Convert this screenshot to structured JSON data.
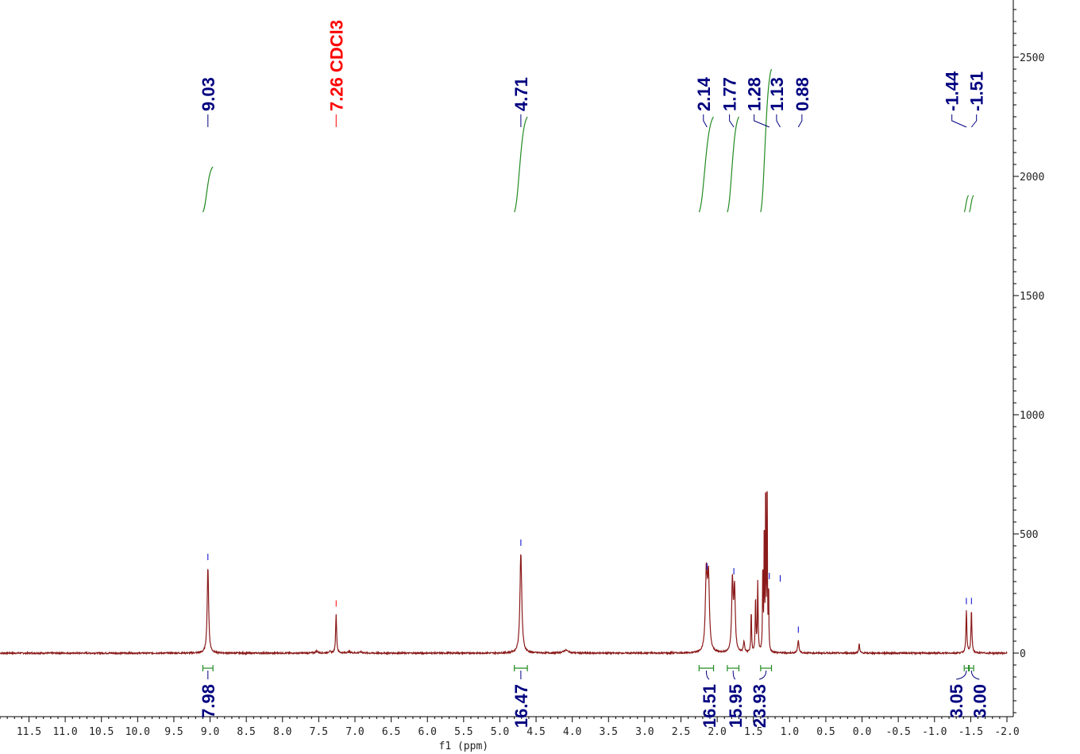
{
  "chart_data": {
    "type": "line",
    "title": "",
    "xlabel": "f1 (ppm)",
    "ylabel": "",
    "xlim": [
      11.9,
      -2.0
    ],
    "ylim": [
      -260,
      2740
    ],
    "x_ticks": [
      11.5,
      11.0,
      10.5,
      10.0,
      9.5,
      9.0,
      8.5,
      8.0,
      7.5,
      7.0,
      6.5,
      6.0,
      5.5,
      5.0,
      4.5,
      4.0,
      3.5,
      3.0,
      2.5,
      2.0,
      1.5,
      1.0,
      0.5,
      0.0,
      -0.5,
      -1.0,
      -1.5,
      -2.0
    ],
    "x_tick_labels": [
      "11.5",
      "11.0",
      "10.5",
      "10.0",
      "9.5",
      "9.0",
      "8.5",
      "8.0",
      "7.5",
      "7.0",
      "6.5",
      "6.0",
      "5.5",
      "5.0",
      "4.5",
      "4.0",
      "3.5",
      "3.0",
      "2.5",
      "2.0",
      "1.5",
      "1.0",
      "0.5",
      "0.0",
      "-0.5",
      "-1.0",
      "-1.5",
      "-2.0"
    ],
    "y_ticks": [
      0,
      500,
      1000,
      1500,
      2000,
      2500
    ],
    "y_tick_labels": [
      "0",
      "500",
      "1000",
      "1500",
      "2000",
      "2500"
    ],
    "spectrum_color": "#8b1a1a",
    "peaks": [
      {
        "ppm": 9.03,
        "height": 360,
        "width": 0.012
      },
      {
        "ppm": 7.26,
        "height": 165,
        "width": 0.008
      },
      {
        "ppm": 7.53,
        "height": 8,
        "width": 0.02
      },
      {
        "ppm": 7.35,
        "height": 6,
        "width": 0.02
      },
      {
        "ppm": 7.08,
        "height": 5,
        "width": 0.03
      },
      {
        "ppm": 6.92,
        "height": 4,
        "width": 0.03
      },
      {
        "ppm": 4.71,
        "height": 420,
        "width": 0.015
      },
      {
        "ppm": 4.09,
        "height": 12,
        "width": 0.04
      },
      {
        "ppm": 2.15,
        "height": 320,
        "width": 0.015
      },
      {
        "ppm": 2.12,
        "height": 300,
        "width": 0.015
      },
      {
        "ppm": 1.79,
        "height": 300,
        "width": 0.012
      },
      {
        "ppm": 1.76,
        "height": 260,
        "width": 0.012
      },
      {
        "ppm": 1.63,
        "height": 45,
        "width": 0.01
      },
      {
        "ppm": 1.53,
        "height": 170,
        "width": 0.006
      },
      {
        "ppm": 1.47,
        "height": 230,
        "width": 0.006
      },
      {
        "ppm": 1.44,
        "height": 290,
        "width": 0.006
      },
      {
        "ppm": 1.37,
        "height": 360,
        "width": 0.005
      },
      {
        "ppm": 1.35,
        "height": 560,
        "width": 0.004
      },
      {
        "ppm": 1.33,
        "height": 760,
        "width": 0.004
      },
      {
        "ppm": 1.31,
        "height": 780,
        "width": 0.004
      },
      {
        "ppm": 1.29,
        "height": 280,
        "width": 0.004
      },
      {
        "ppm": 0.88,
        "height": 55,
        "width": 0.01
      },
      {
        "ppm": 0.04,
        "height": 38,
        "width": 0.008
      },
      {
        "ppm": -1.44,
        "height": 175,
        "width": 0.008
      },
      {
        "ppm": -1.51,
        "height": 175,
        "width": 0.008
      }
    ],
    "peak_labels": [
      {
        "ppm": 9.03,
        "text": "9.03",
        "color": "#000080"
      },
      {
        "ppm": 7.26,
        "text": "7.26 CDCl3",
        "color": "#ff0000"
      },
      {
        "ppm": 4.71,
        "text": "4.71",
        "color": "#000080"
      },
      {
        "ppm": 2.14,
        "text": "2.14",
        "color": "#000080"
      },
      {
        "ppm": 1.77,
        "text": "1.77",
        "color": "#000080"
      },
      {
        "ppm": 1.28,
        "text": "1.28",
        "color": "#000080"
      },
      {
        "ppm": 1.13,
        "text": "1.13",
        "color": "#000080"
      },
      {
        "ppm": 0.88,
        "text": "0.88",
        "color": "#000080"
      },
      {
        "ppm": -1.44,
        "text": "-1.44",
        "color": "#000080"
      },
      {
        "ppm": -1.51,
        "text": "-1.51",
        "color": "#000080"
      }
    ],
    "integrals": [
      {
        "from": 9.1,
        "to": 8.96,
        "value": "7.98",
        "curve_bottom": 1850,
        "curve_top": 2040
      },
      {
        "from": 4.8,
        "to": 4.62,
        "value": "16.47",
        "curve_bottom": 1850,
        "curve_top": 2250
      },
      {
        "from": 2.25,
        "to": 2.05,
        "value": "16.51",
        "curve_bottom": 1850,
        "curve_top": 2250
      },
      {
        "from": 1.86,
        "to": 1.7,
        "value": "15.95",
        "curve_bottom": 1850,
        "curve_top": 2250
      },
      {
        "from": 1.4,
        "to": 1.25,
        "value": "23.93",
        "curve_bottom": 1850,
        "curve_top": 2450
      },
      {
        "from": -1.41,
        "to": -1.47,
        "value": "3.05",
        "curve_bottom": 1850,
        "curve_top": 1920
      },
      {
        "from": -1.48,
        "to": -1.54,
        "value": "3.00",
        "curve_bottom": 1850,
        "curve_top": 1920
      }
    ],
    "integral_color": "#228b22",
    "label_color_default": "#000080",
    "grid": false,
    "legend": "none"
  }
}
